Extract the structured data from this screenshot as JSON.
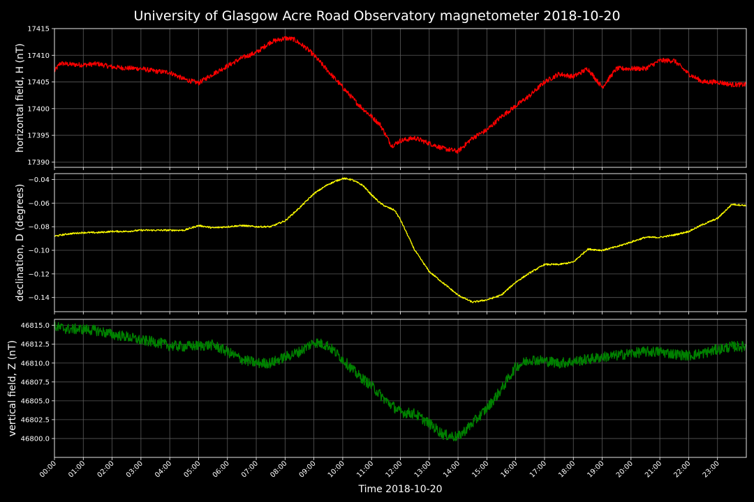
{
  "chart_data": {
    "title": "University of Glasgow Acre Road Observatory magnetometer 2018-10-20",
    "xlabel": "Time 2018-10-20",
    "x_range": [
      "00:00",
      "23:59"
    ],
    "x_tick_labels": [
      "00:00",
      "01:00",
      "02:00",
      "03:00",
      "04:00",
      "05:00",
      "06:00",
      "07:00",
      "08:00",
      "09:00",
      "10:00",
      "11:00",
      "12:00",
      "13:00",
      "14:00",
      "15:00",
      "16:00",
      "17:00",
      "18:00",
      "19:00",
      "20:00",
      "21:00",
      "22:00",
      "23:00"
    ],
    "grid": true,
    "background": "#000000",
    "panels": [
      {
        "type": "line",
        "ylabel": "horizontal field, H (nT)",
        "color": "#ff0000",
        "ylim": [
          17389,
          17415
        ],
        "y_ticks": [
          17390,
          17395,
          17400,
          17405,
          17410,
          17415
        ],
        "y_tick_labels": [
          "17390",
          "17395",
          "17400",
          "17405",
          "17410",
          "17415"
        ],
        "noise": 0.45,
        "x_hours": [
          0,
          0.2,
          0.5,
          1,
          1.5,
          2,
          2.5,
          3,
          3.5,
          4,
          4.5,
          5,
          5.5,
          6,
          6.5,
          7,
          7.5,
          8,
          8.3,
          8.7,
          9,
          9.5,
          10,
          10.5,
          11,
          11.3,
          11.7,
          12,
          12.5,
          13,
          13.5,
          14,
          14.5,
          15,
          15.5,
          16,
          16.5,
          17,
          17.5,
          18,
          18.5,
          19,
          19.5,
          20,
          20.5,
          21,
          21.5,
          22,
          22.5,
          23,
          23.5,
          23.98
        ],
        "values": [
          17407,
          17408.5,
          17408.3,
          17408.2,
          17408.4,
          17407.8,
          17407.6,
          17407.5,
          17407.0,
          17406.8,
          17405.5,
          17404.8,
          17406.5,
          17408.0,
          17409.5,
          17410.5,
          17412.5,
          17413.2,
          17413.0,
          17411.5,
          17410.0,
          17407.0,
          17404.0,
          17401.0,
          17398.5,
          17397.0,
          17393.0,
          17394.0,
          17394.5,
          17393.5,
          17392.5,
          17392.0,
          17394.5,
          17396.0,
          17398.5,
          17400.5,
          17402.5,
          17405.0,
          17406.5,
          17406.0,
          17407.5,
          17404.0,
          17407.5,
          17407.5,
          17407.5,
          17409.0,
          17409.0,
          17406.5,
          17405.0,
          17405.0,
          17404.5,
          17404.5
        ]
      },
      {
        "type": "line",
        "ylabel": "declination, D (degrees)",
        "color": "#ffff00",
        "ylim": [
          -0.152,
          -0.035
        ],
        "y_ticks": [
          -0.14,
          -0.12,
          -0.1,
          -0.08,
          -0.06,
          -0.04
        ],
        "y_tick_labels": [
          "−0.14",
          "−0.12",
          "−0.10",
          "−0.08",
          "−0.06",
          "−0.04"
        ],
        "noise": 0.0007,
        "x_hours": [
          0,
          0.5,
          1,
          1.5,
          2,
          2.5,
          3,
          3.5,
          4,
          4.5,
          5,
          5.5,
          6,
          6.5,
          7,
          7.5,
          8,
          8.5,
          9,
          9.5,
          10,
          10.3,
          10.7,
          11,
          11.3,
          11.5,
          11.8,
          12,
          12.5,
          13,
          13.5,
          14,
          14.5,
          15,
          15.5,
          16,
          16.5,
          17,
          17.5,
          18,
          18.5,
          19,
          19.5,
          20,
          20.5,
          21,
          21.5,
          22,
          22.5,
          23,
          23.5,
          23.98
        ],
        "values": [
          -0.088,
          -0.086,
          -0.085,
          -0.085,
          -0.084,
          -0.084,
          -0.083,
          -0.083,
          -0.083,
          -0.083,
          -0.079,
          -0.081,
          -0.08,
          -0.079,
          -0.08,
          -0.08,
          -0.075,
          -0.064,
          -0.052,
          -0.044,
          -0.039,
          -0.04,
          -0.045,
          -0.053,
          -0.06,
          -0.063,
          -0.066,
          -0.074,
          -0.1,
          -0.118,
          -0.128,
          -0.138,
          -0.144,
          -0.142,
          -0.138,
          -0.127,
          -0.119,
          -0.112,
          -0.112,
          -0.11,
          -0.099,
          -0.1,
          -0.097,
          -0.093,
          -0.089,
          -0.089,
          -0.087,
          -0.084,
          -0.078,
          -0.073,
          -0.061,
          -0.062
        ]
      },
      {
        "type": "line",
        "ylabel": "vertical field, Z (nT)",
        "color": "#008000",
        "ylim": [
          46797.5,
          46815.8
        ],
        "y_ticks": [
          46800.0,
          46802.5,
          46805.0,
          46807.5,
          46810.0,
          46812.5,
          46815.0
        ],
        "y_tick_labels": [
          "46800.0",
          "46802.5",
          "46805.0",
          "46807.5",
          "46810.0",
          "46812.5",
          "46815.0"
        ],
        "noise": 0.7,
        "x_hours": [
          0,
          0.5,
          1,
          1.5,
          2,
          2.5,
          3,
          3.5,
          4,
          4.5,
          5,
          5.5,
          6,
          6.5,
          7,
          7.5,
          8,
          8.5,
          9,
          9.5,
          10,
          10.5,
          11,
          11.5,
          12,
          12.5,
          13,
          13.5,
          14,
          14.5,
          15,
          15.5,
          16,
          16.5,
          17,
          17.5,
          18,
          18.5,
          19,
          19.5,
          20,
          20.5,
          21,
          21.5,
          22,
          22.5,
          23,
          23.5,
          23.98
        ],
        "values": [
          46814.8,
          46814.5,
          46814.5,
          46814.3,
          46813.8,
          46813.5,
          46813.0,
          46812.8,
          46812.3,
          46812.2,
          46812.3,
          46812.4,
          46811.5,
          46810.5,
          46810.0,
          46810.0,
          46810.8,
          46811.5,
          46812.8,
          46812.3,
          46810.5,
          46808.5,
          46807.0,
          46805.0,
          46803.5,
          46803.3,
          46802.0,
          46800.5,
          46800.2,
          46802.0,
          46804.0,
          46806.5,
          46809.5,
          46810.5,
          46810.3,
          46810.0,
          46810.2,
          46810.5,
          46810.8,
          46811.0,
          46811.3,
          46811.5,
          46811.5,
          46811.2,
          46811.0,
          46811.3,
          46811.8,
          46812.2,
          46812.2
        ]
      }
    ]
  }
}
